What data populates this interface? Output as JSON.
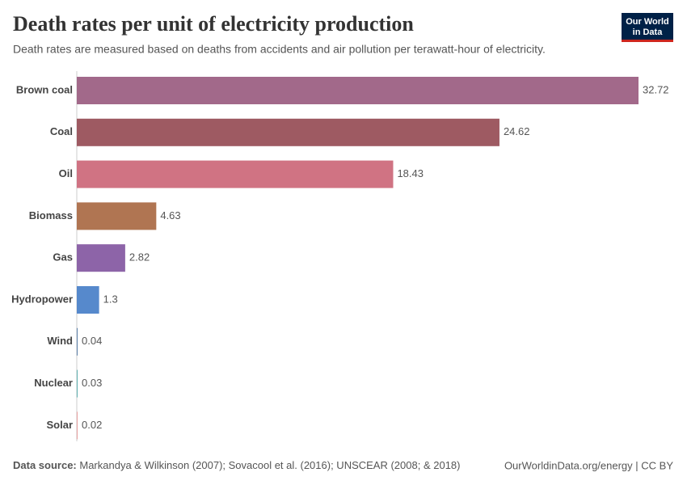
{
  "chart_data": {
    "type": "bar",
    "orientation": "horizontal",
    "title": "Death rates per unit of electricity production",
    "subtitle": "Death rates are measured based on deaths from accidents and air pollution per terawatt-hour of electricity.",
    "categories": [
      "Brown coal",
      "Coal",
      "Oil",
      "Biomass",
      "Gas",
      "Hydropower",
      "Wind",
      "Nuclear",
      "Solar"
    ],
    "values": [
      32.72,
      24.62,
      18.43,
      4.63,
      2.82,
      1.3,
      0.04,
      0.03,
      0.02
    ],
    "colors": [
      "#a2698a",
      "#9e5a62",
      "#d07383",
      "#b07552",
      "#8d64a8",
      "#5689cc",
      "#5b7fa8",
      "#5fb0b0",
      "#e8a0a0"
    ],
    "source_label": "Data source:",
    "source": "Markandya & Wilkinson (2007); Sovacool et al. (2016); UNSCEAR (2008; & 2018)",
    "credit": "OurWorldinData.org/energy | CC BY",
    "logo": [
      "Our World",
      "in Data"
    ]
  }
}
